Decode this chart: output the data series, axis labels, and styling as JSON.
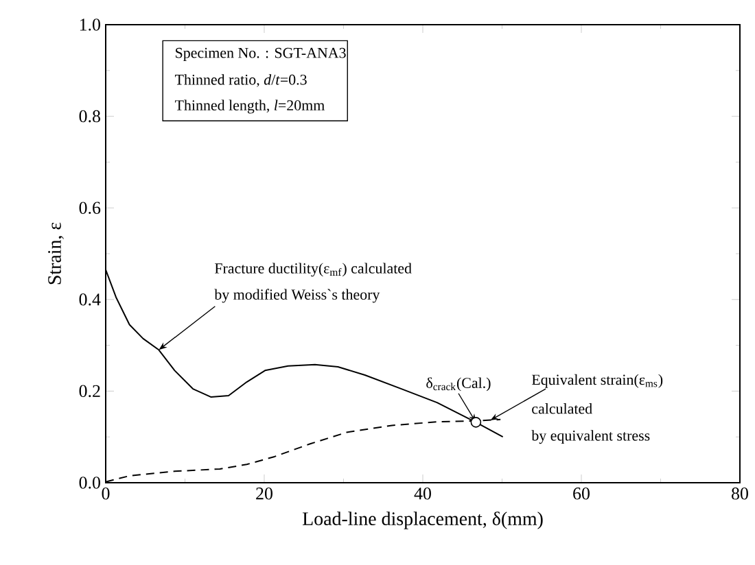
{
  "chart_data": {
    "type": "line",
    "xlabel": "Load-line displacement, δ(mm)",
    "ylabel": "Strain, ε",
    "xlim": [
      0,
      80
    ],
    "xticks": [
      0,
      20,
      40,
      60,
      80
    ],
    "ylim": [
      0,
      1.0
    ],
    "yticks": [
      {
        "value": 0,
        "label": "0.0"
      },
      0.2,
      0.4,
      0.6,
      0.8,
      {
        "value": 1.0,
        "label": "1.0"
      }
    ],
    "grid": false,
    "series": [
      {
        "color": "#000000",
        "line_style": "solid",
        "x": [
          0,
          1.3,
          3.0,
          4.7,
          6.7,
          8.7,
          11,
          13.3,
          15.5,
          17.8,
          20.1,
          23,
          26.4,
          29.3,
          32.7,
          37.3,
          41.8,
          46.7,
          50.1
        ],
        "values": [
          0.465,
          0.405,
          0.345,
          0.315,
          0.29,
          0.245,
          0.205,
          0.187,
          0.19,
          0.22,
          0.245,
          0.255,
          0.258,
          0.253,
          0.235,
          0.205,
          0.175,
          0.132,
          0.1
        ]
      },
      {
        "type": "line",
        "color": "#000000",
        "line_style": "dashed",
        "x": [
          0,
          3,
          8.7,
          14.4,
          17.8,
          21.3,
          25.8,
          30.4,
          36.1,
          41.8,
          46.7,
          49.8
        ],
        "values": [
          0.002,
          0.015,
          0.025,
          0.03,
          0.04,
          0.057,
          0.085,
          0.11,
          0.125,
          0.133,
          0.135,
          0.138
        ]
      },
      {
        "type": "scatter",
        "color": "#000000",
        "marker": "circle",
        "x": [
          46.7
        ],
        "values": [
          0.132
        ]
      }
    ],
    "annotations": [
      "Specimen No. : SGT-ANA3",
      "Thinned ratio, *d*/*t*=0.3",
      "Thinned length, *l*=20mm",
      "Fracture ductility(ε$_{mf}$) calculated",
      {
        "text": "by modified Weiss`s theory",
        "x": 6.7,
        "y": 0.29
      },
      {
        "text": "δ$_{crack}$(Cal.)",
        "x": 46.7,
        "y": 0.132
      },
      {
        "text": "Equivalent strain(ε$_{ms}$)",
        "x": 48.5,
        "y": 0.136
      },
      "calculated",
      "by equivalent stress"
    ]
  }
}
